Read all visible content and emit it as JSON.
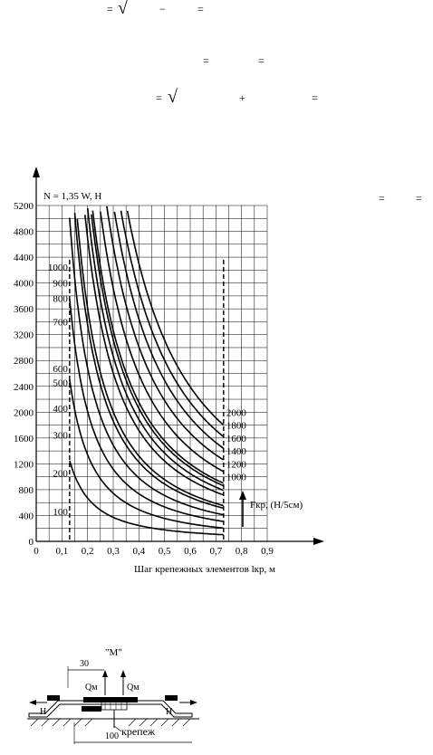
{
  "formula_fragments": {
    "line1": [
      "=",
      "√",
      "−",
      "="
    ],
    "line2": [
      "=",
      "="
    ],
    "line3": [
      "=",
      "√",
      "+",
      "="
    ],
    "side": [
      "=",
      "="
    ]
  },
  "chart_data": {
    "type": "line",
    "title": "",
    "ylabel": "N = 1,35 W, H",
    "xlabel": "Шаг крепежных элементов lкр, м",
    "xlim": [
      0,
      0.9
    ],
    "ylim": [
      0,
      5200
    ],
    "x_ticks": [
      "0",
      "0,1",
      "0,2",
      "0,3",
      "0,4",
      "0,5",
      "0,6",
      "0,7",
      "0,8",
      "0,9"
    ],
    "y_ticks": [
      "0",
      "400",
      "800",
      "1200",
      "1600",
      "2000",
      "2400",
      "2800",
      "3200",
      "3600",
      "4000",
      "4400",
      "4800",
      "5200"
    ],
    "grid": true,
    "dashed_verticals_x": [
      0.13,
      0.73
    ],
    "legend_title": "Fкр, (Н/5см)",
    "series": [
      {
        "name": "100",
        "k": 65
      },
      {
        "name": "200",
        "k": 130
      },
      {
        "name": "300",
        "k": 195
      },
      {
        "name": "400",
        "k": 260
      },
      {
        "name": "500",
        "k": 325
      },
      {
        "name": "600",
        "k": 350
      },
      {
        "name": "700",
        "k": 455
      },
      {
        "name": "800",
        "k": 500
      },
      {
        "name": "900",
        "k": 545
      },
      {
        "name": "1000",
        "k": 570
      },
      {
        "name": "1200",
        "k": 684
      },
      {
        "name": "1400",
        "k": 798
      },
      {
        "name": "1600",
        "k": 912
      },
      {
        "name": "1800",
        "k": 1026
      },
      {
        "name": "2000",
        "k": 1140
      }
    ],
    "left_labels": [
      {
        "text": "1000",
        "y": 4250
      },
      {
        "text": "900",
        "y": 4000
      },
      {
        "text": "800",
        "y": 3760
      },
      {
        "text": "700",
        "y": 3400
      },
      {
        "text": "600",
        "y": 2680
      },
      {
        "text": "500",
        "y": 2460
      },
      {
        "text": "400",
        "y": 2060
      },
      {
        "text": "300",
        "y": 1650
      },
      {
        "text": "200",
        "y": 1060
      },
      {
        "text": "100",
        "y": 460
      }
    ],
    "right_labels": [
      "2000",
      "1800",
      "1600",
      "1400",
      "1200",
      "1000"
    ]
  },
  "diagram": {
    "title": "\"М\"",
    "dim_top": "30",
    "q_left": "Qм",
    "q_right": "Qм",
    "h_left": "Н",
    "h_right": "Н",
    "fastener_label": "крепеж",
    "dim_bottom": "100"
  }
}
